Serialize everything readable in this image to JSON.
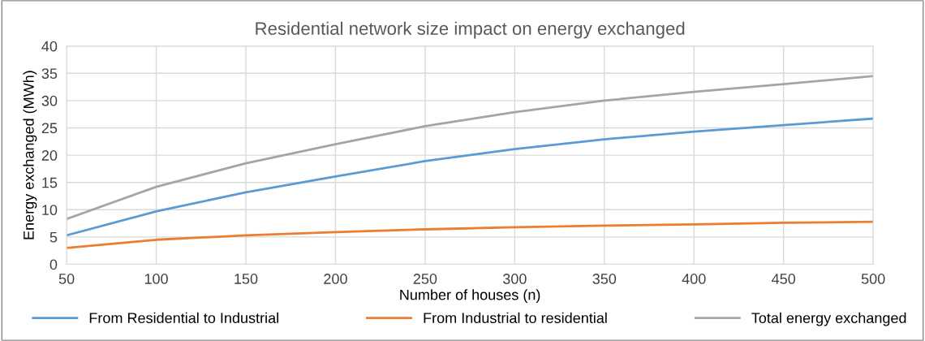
{
  "chart_data": {
    "type": "line",
    "title": "Residential network size impact on energy exchanged",
    "xlabel": "Number of houses (n)",
    "ylabel": "Energy exchanged (MWh)",
    "x": [
      50,
      100,
      150,
      200,
      250,
      300,
      350,
      400,
      450,
      500
    ],
    "series": [
      {
        "name": "From Residential to Industrial",
        "color": "#5b9bd5",
        "values": [
          5.3,
          9.7,
          13.2,
          16.1,
          18.9,
          21.1,
          22.9,
          24.3,
          25.5,
          26.7
        ]
      },
      {
        "name": "From Industrial to residential",
        "color": "#ed7d31",
        "values": [
          3.0,
          4.5,
          5.3,
          5.9,
          6.4,
          6.8,
          7.1,
          7.3,
          7.6,
          7.8
        ]
      },
      {
        "name": "Total energy exchanged",
        "color": "#a5a5a5",
        "values": [
          8.3,
          14.2,
          18.5,
          22.0,
          25.3,
          27.9,
          30.0,
          31.6,
          33.0,
          34.5
        ]
      }
    ],
    "xlim": [
      50,
      500
    ],
    "xticks": [
      50,
      100,
      150,
      200,
      250,
      300,
      350,
      400,
      450,
      500
    ],
    "ylim": [
      0,
      40
    ],
    "yticks": [
      0,
      5,
      10,
      15,
      20,
      25,
      30,
      35,
      40
    ],
    "grid": true,
    "legend": "bottom",
    "marker": "none",
    "line_style": "solid"
  }
}
